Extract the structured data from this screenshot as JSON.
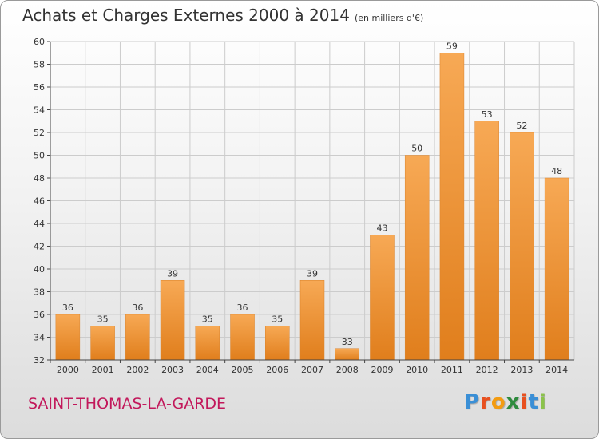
{
  "header": {
    "title": "Achats et Charges Externes 2000 à 2014",
    "unit": "(en milliers d'€)"
  },
  "footer": {
    "commune": "SAINT-THOMAS-LA-GARDE",
    "logo_letters": [
      "P",
      "r",
      "o",
      "x",
      "i",
      "t",
      "i"
    ],
    "logo_colors": [
      "#3a8fd6",
      "#e8501f",
      "#f39c12",
      "#2e8b3e",
      "#e8501f",
      "#3a8fd6",
      "#8bc34a"
    ]
  },
  "colors": {
    "bar_light": "#f7a955",
    "bar_dark": "#e07e1c",
    "grid": "#cccccc",
    "axis": "#444444"
  },
  "chart_data": {
    "type": "bar",
    "categories": [
      "2000",
      "2001",
      "2002",
      "2003",
      "2004",
      "2005",
      "2006",
      "2007",
      "2008",
      "2009",
      "2010",
      "2011",
      "2012",
      "2013",
      "2014"
    ],
    "values": [
      36,
      35,
      36,
      39,
      35,
      36,
      35,
      39,
      33,
      43,
      50,
      59,
      53,
      52,
      48
    ],
    "title": "Achats et Charges Externes 2000 à 2014",
    "ylim": [
      32,
      60
    ],
    "ytick_step": 2,
    "grid": true,
    "legend": "none"
  }
}
